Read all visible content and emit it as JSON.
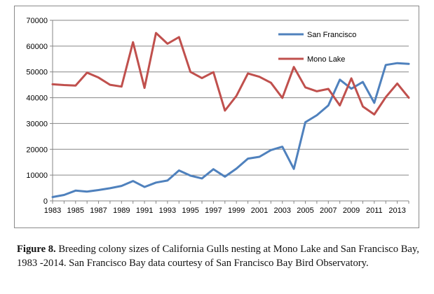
{
  "chart_data": {
    "type": "line",
    "title": "",
    "xlabel": "",
    "ylabel": "",
    "x": [
      1983,
      1984,
      1985,
      1986,
      1987,
      1988,
      1989,
      1990,
      1991,
      1992,
      1993,
      1994,
      1995,
      1996,
      1997,
      1998,
      1999,
      2000,
      2001,
      2002,
      2003,
      2004,
      2005,
      2006,
      2007,
      2008,
      2009,
      2010,
      2011,
      2012,
      2013,
      2014
    ],
    "x_tick_labels": [
      "1983",
      "1985",
      "1987",
      "1989",
      "1991",
      "1993",
      "1995",
      "1997",
      "1999",
      "2001",
      "2003",
      "2005",
      "2007",
      "2009",
      "2011",
      "2013"
    ],
    "y_tick_labels": [
      "0",
      "10000",
      "20000",
      "30000",
      "40000",
      "50000",
      "60000",
      "70000"
    ],
    "xlim": [
      1983,
      2014
    ],
    "ylim": [
      0,
      70000
    ],
    "y_ticks": [
      0,
      10000,
      20000,
      30000,
      40000,
      50000,
      60000,
      70000
    ],
    "grid": true,
    "legend_position": "top-right",
    "series": [
      {
        "name": "San Francisco",
        "color": "#4f81bd",
        "values": [
          1500,
          2300,
          4000,
          3600,
          4200,
          4900,
          5800,
          7700,
          5400,
          7100,
          7900,
          11800,
          9800,
          8700,
          12300,
          9400,
          12500,
          16400,
          17100,
          19700,
          21000,
          12400,
          30500,
          33200,
          37000,
          47000,
          43500,
          46100,
          38000,
          52700,
          53400,
          53100
        ]
      },
      {
        "name": "Mono Lake",
        "color": "#c0504d",
        "values": [
          45200,
          44900,
          44700,
          49700,
          47800,
          45000,
          44300,
          61500,
          43800,
          65100,
          60900,
          63500,
          50000,
          47600,
          49900,
          35000,
          40700,
          49400,
          48100,
          45800,
          39900,
          51900,
          44000,
          42500,
          43400,
          37000,
          47500,
          36600,
          33500,
          40200,
          45500,
          40000
        ]
      }
    ]
  },
  "caption": {
    "label": "Figure 8.",
    "text": " Breeding colony sizes of California Gulls nesting at Mono Lake and San Francisco Bay, 1983 -2014. San Francisco Bay data courtesy of San Francisco Bay Bird Observatory."
  }
}
